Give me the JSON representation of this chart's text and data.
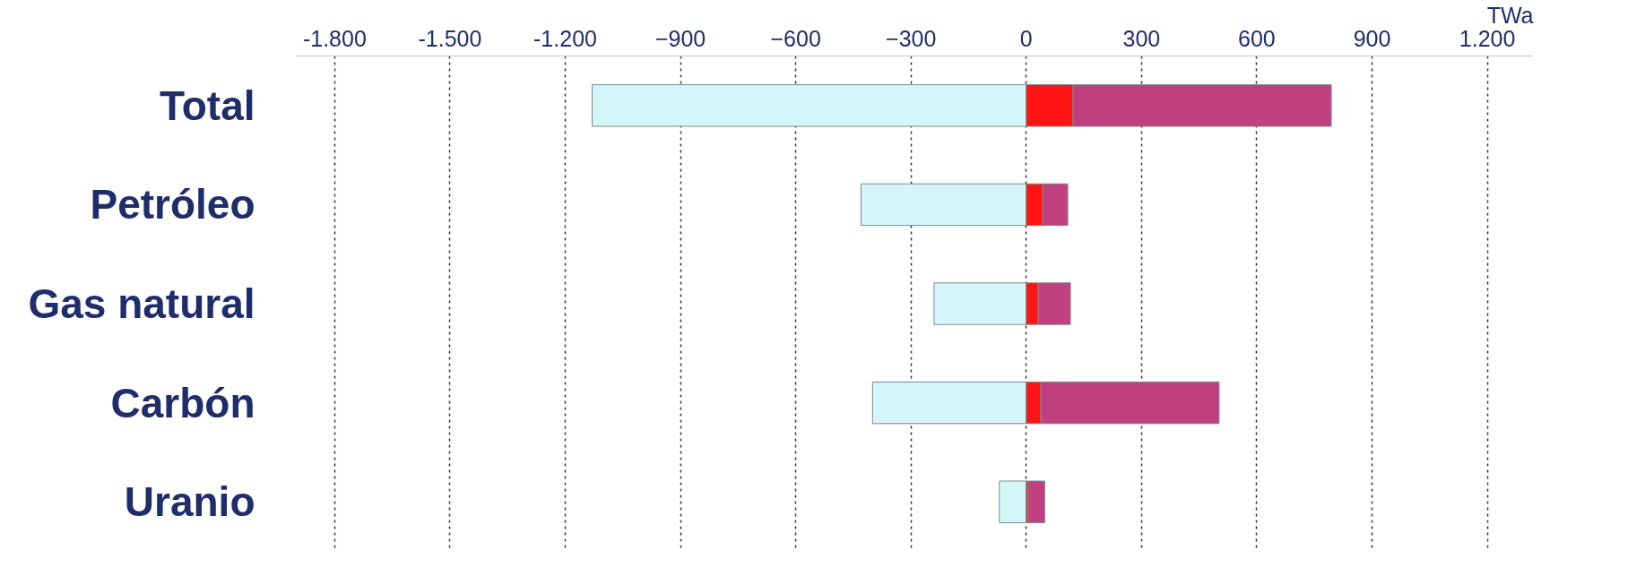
{
  "chart_data": {
    "type": "bar",
    "orientation": "horizontal",
    "stacked": true,
    "categories": [
      "Total",
      "Petróleo",
      "Gas natural",
      "Carbón",
      "Uranio"
    ],
    "series": [
      {
        "color": "#d4f6f8",
        "values": [
          -1130,
          -430,
          -240,
          -400,
          -70
        ]
      },
      {
        "color": "#ff1414",
        "values": [
          122,
          43,
          31,
          38,
          5
        ]
      },
      {
        "color": "#c0407f",
        "values": [
          672,
          65,
          84,
          464,
          43
        ]
      }
    ],
    "xlabel": "TWa",
    "xlim": [
      -1900,
      1320
    ],
    "xticks": [
      {
        "value": -1800,
        "label": "-1.800"
      },
      {
        "value": -1500,
        "label": "-1.500"
      },
      {
        "value": -1200,
        "label": "-1.200"
      },
      -900,
      -600,
      -300,
      0,
      300,
      600,
      900,
      {
        "value": 1200,
        "label": "1.200"
      }
    ],
    "grid": "x"
  }
}
